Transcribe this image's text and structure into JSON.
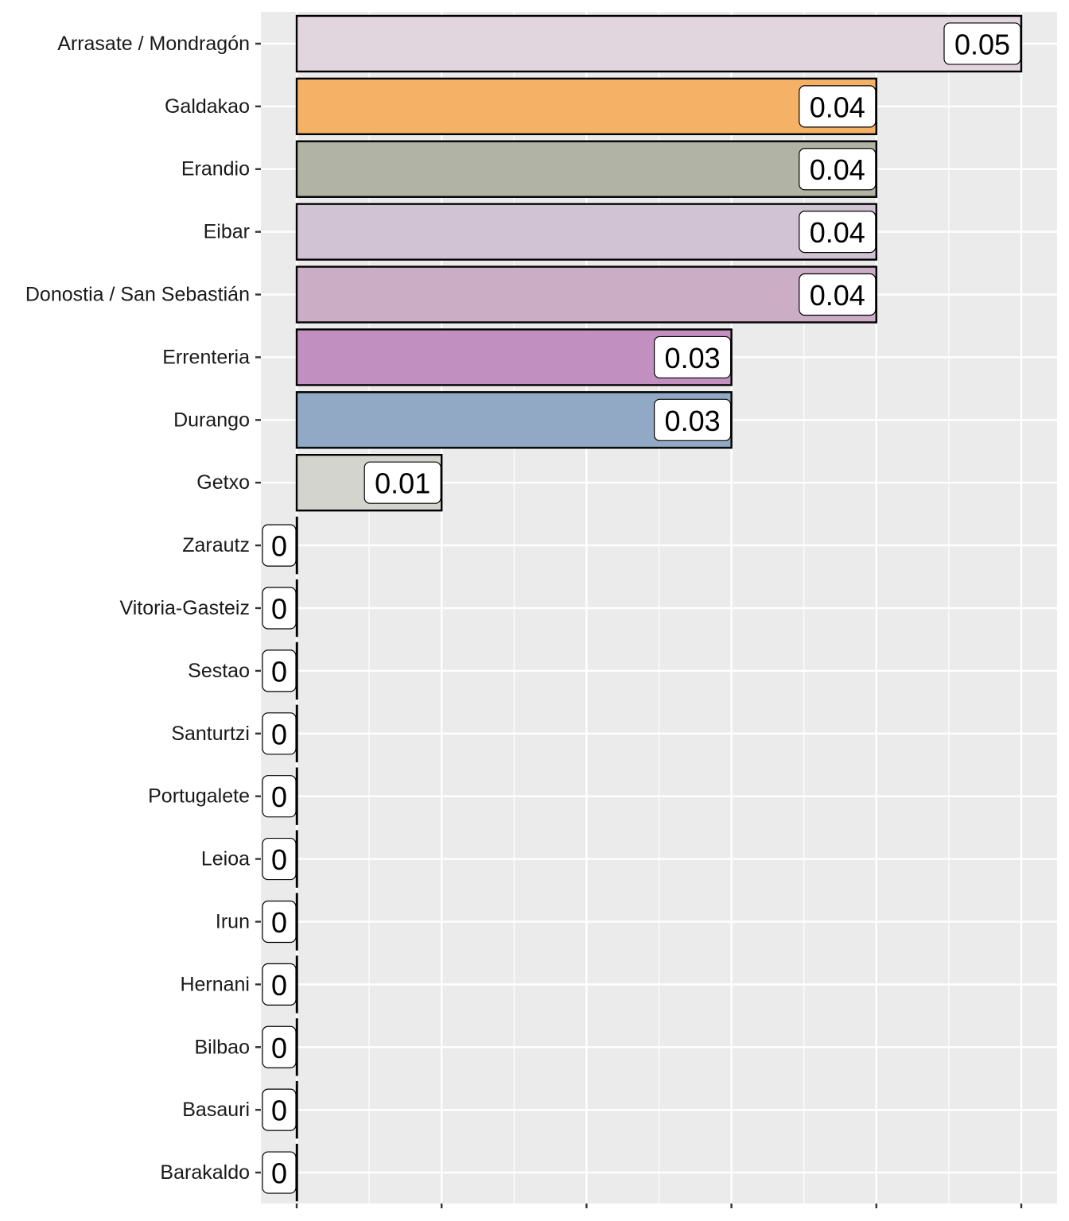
{
  "chart_data": {
    "type": "bar",
    "orientation": "horizontal",
    "title": "",
    "xlabel": "",
    "ylabel": "",
    "xlim": [
      0,
      0.05
    ],
    "grid": true,
    "categories": [
      "Arrasate / Mondragón",
      "Galdakao",
      "Erandio",
      "Eibar",
      "Donostia / San Sebastián",
      "Errenteria",
      "Durango",
      "Getxo",
      "Zarautz",
      "Vitoria-Gasteiz",
      "Sestao",
      "Santurtzi",
      "Portugalete",
      "Leioa",
      "Irun",
      "Hernani",
      "Bilbao",
      "Basauri",
      "Barakaldo"
    ],
    "values": [
      0.05,
      0.04,
      0.04,
      0.04,
      0.04,
      0.03,
      0.03,
      0.01,
      0,
      0,
      0,
      0,
      0,
      0,
      0,
      0,
      0,
      0,
      0
    ],
    "labels": [
      "0.05",
      "0.04",
      "0.04",
      "0.04",
      "0.04",
      "0.03",
      "0.03",
      "0.01",
      "0",
      "0",
      "0",
      "0",
      "0",
      "0",
      "0",
      "0",
      "0",
      "0",
      "0"
    ],
    "colors": [
      "#E2D6DE",
      "#F5B266",
      "#B1B3A5",
      "#D2C3D4",
      "#CBADC6",
      "#C290C0",
      "#91A9C4",
      "#D4D4CF",
      "#cccccc",
      "#cccccc",
      "#cccccc",
      "#cccccc",
      "#cccccc",
      "#cccccc",
      "#cccccc",
      "#cccccc",
      "#cccccc",
      "#cccccc",
      "#cccccc"
    ]
  }
}
